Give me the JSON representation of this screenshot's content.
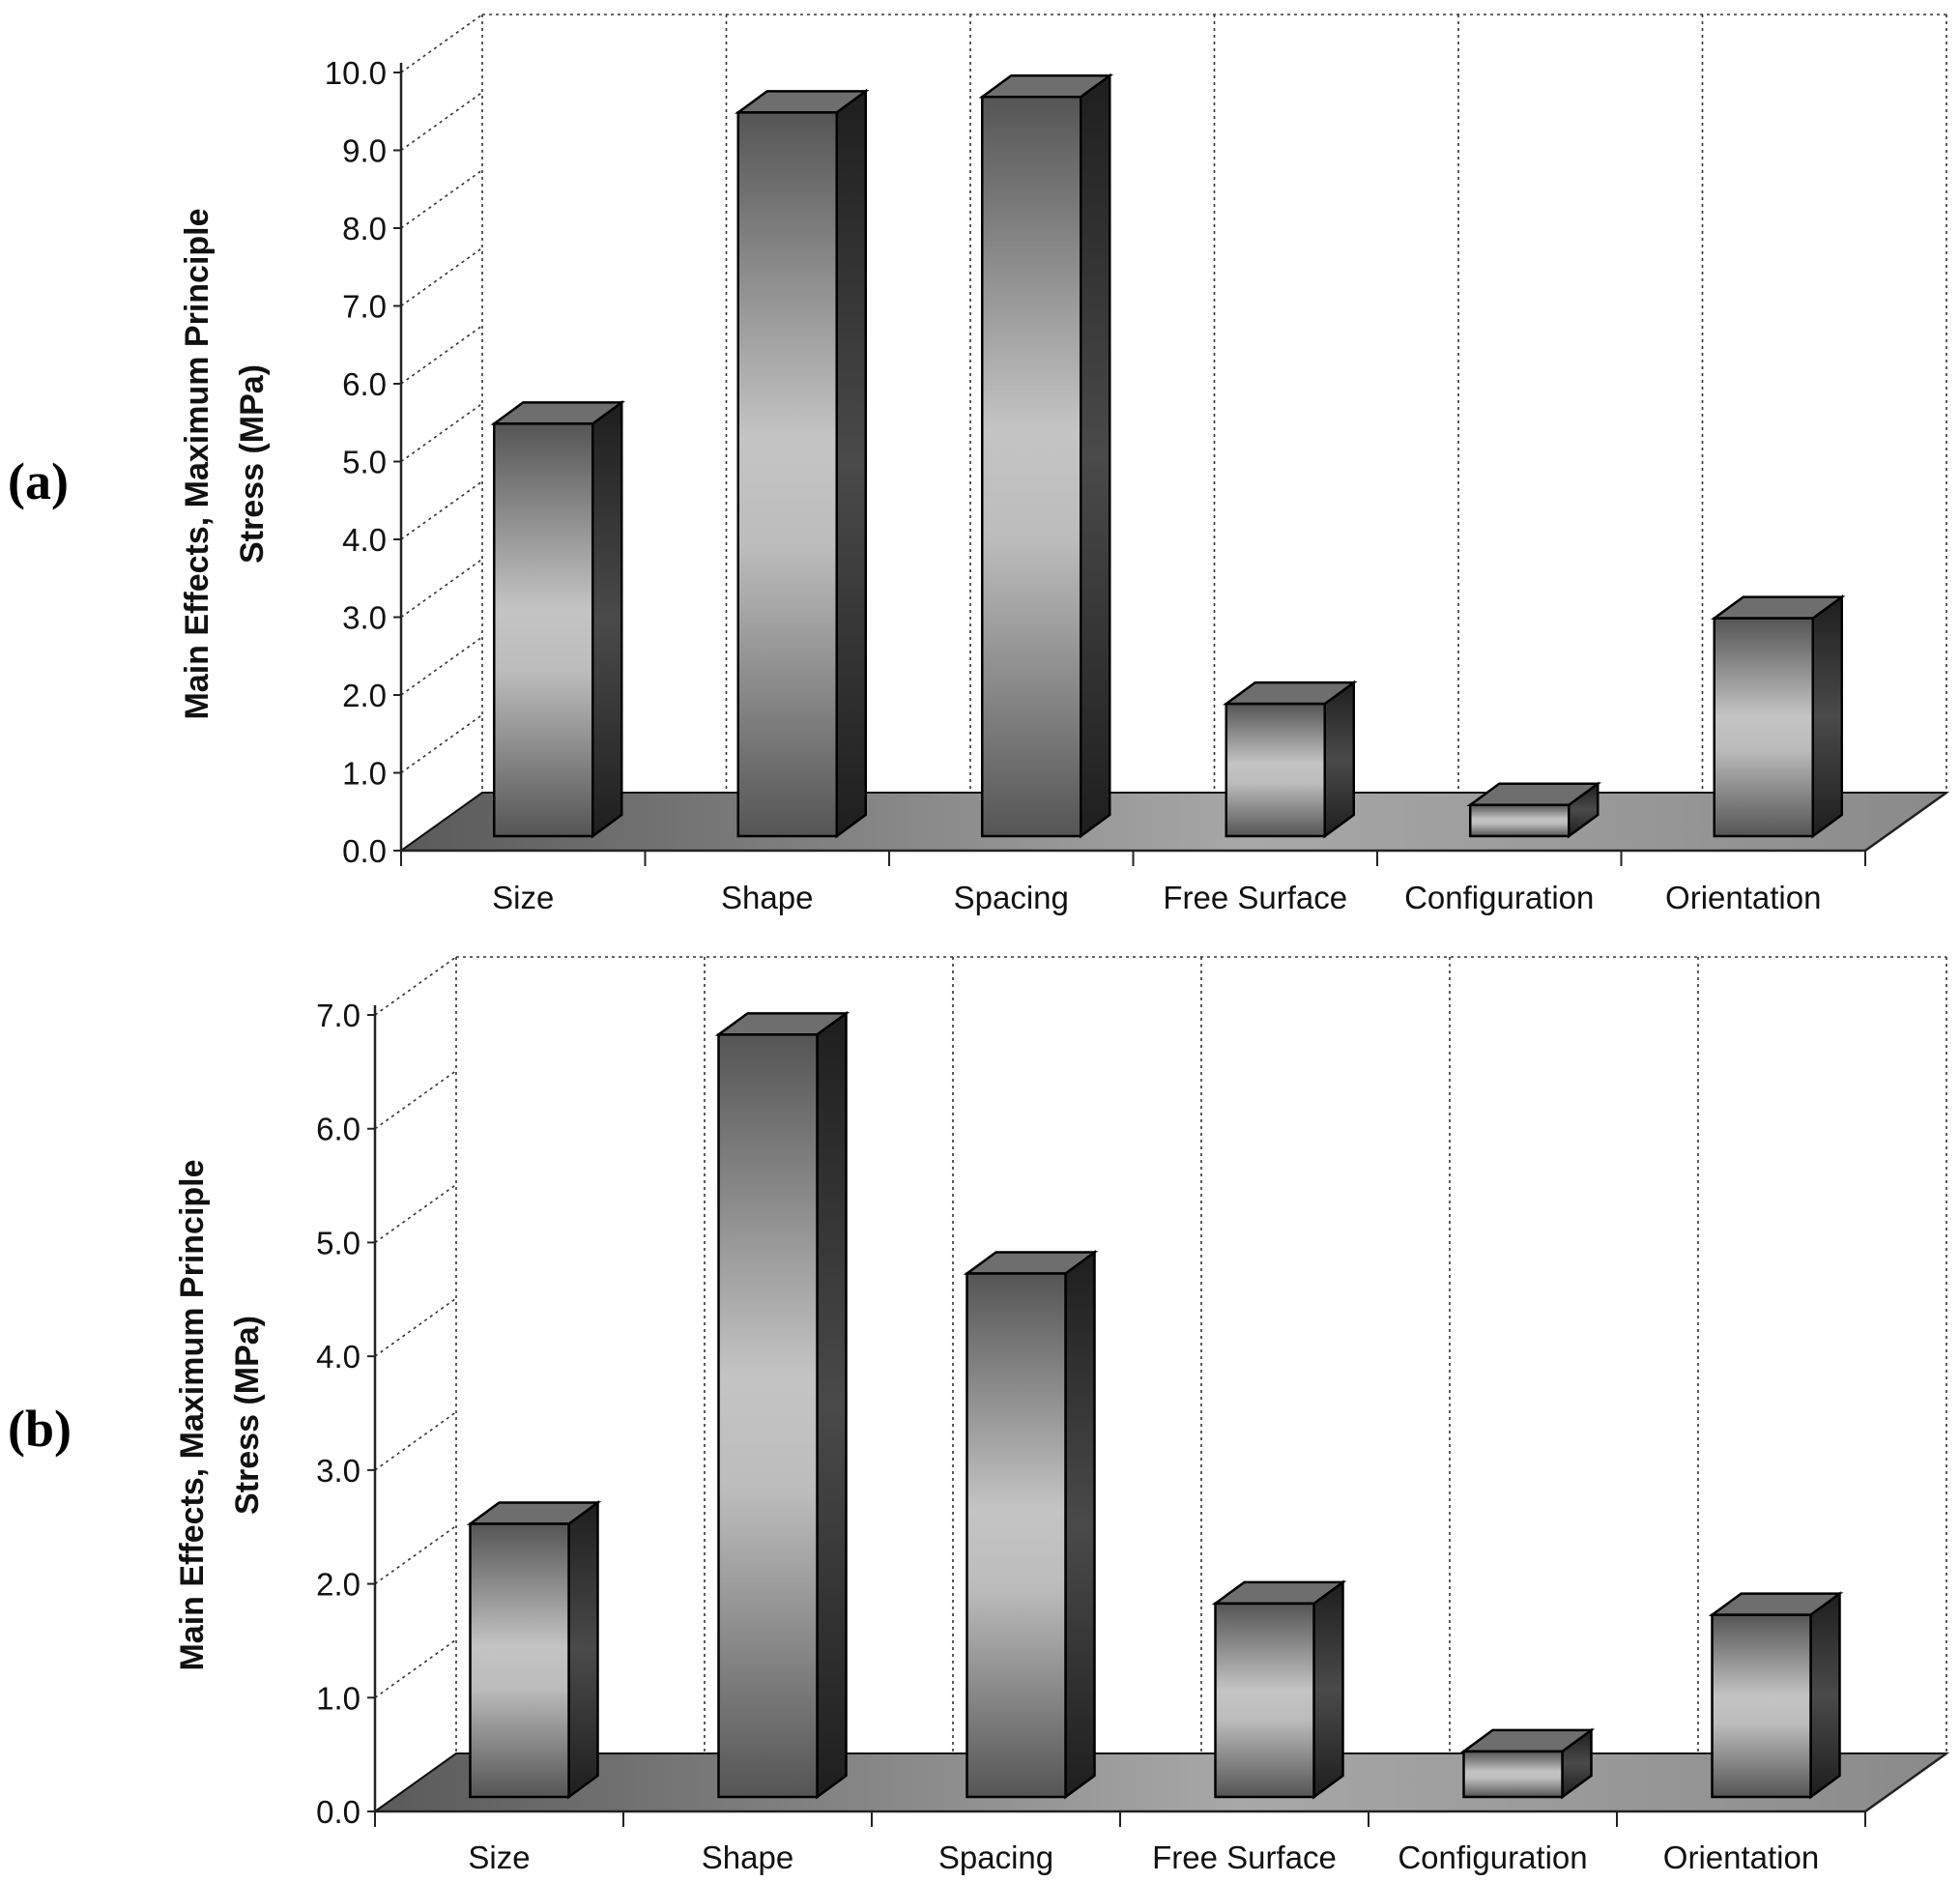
{
  "chart_data": [
    {
      "type": "bar",
      "panel_label": "(a)",
      "categories": [
        "Size",
        "Shape",
        "Spacing",
        "Free Surface",
        "Configuration",
        "Orientation"
      ],
      "values": [
        5.3,
        9.3,
        9.5,
        1.7,
        0.4,
        2.8
      ],
      "ylabel_line1": "Main Effects, Maximum Principle",
      "ylabel_line2": "Stress (MPa)",
      "xlabel": "",
      "ylim": [
        0,
        10
      ],
      "yticks": [
        "0.0",
        "1.0",
        "2.0",
        "3.0",
        "4.0",
        "5.0",
        "6.0",
        "7.0",
        "8.0",
        "9.0",
        "10.0"
      ],
      "grid": true
    },
    {
      "type": "bar",
      "panel_label": "(b)",
      "categories": [
        "Size",
        "Shape",
        "Spacing",
        "Free Surface",
        "Configuration",
        "Orientation"
      ],
      "values": [
        2.4,
        6.7,
        4.6,
        1.7,
        0.4,
        1.6
      ],
      "ylabel_line1": "Main Effects, Maximum Principle",
      "ylabel_line2": "Stress (MPa)",
      "xlabel": "",
      "ylim": [
        0,
        7
      ],
      "yticks": [
        "0.0",
        "1.0",
        "2.0",
        "3.0",
        "4.0",
        "5.0",
        "6.0",
        "7.0"
      ],
      "grid": true
    }
  ],
  "colors": {
    "bar_front_dark": "#555555",
    "bar_front_light": "#c4c4c4",
    "bar_side": "#2a2a2a",
    "bar_top": "#707070",
    "floor_dark": "#5a5a5a",
    "floor_light": "#b0b0b0",
    "grid": "#333333"
  }
}
